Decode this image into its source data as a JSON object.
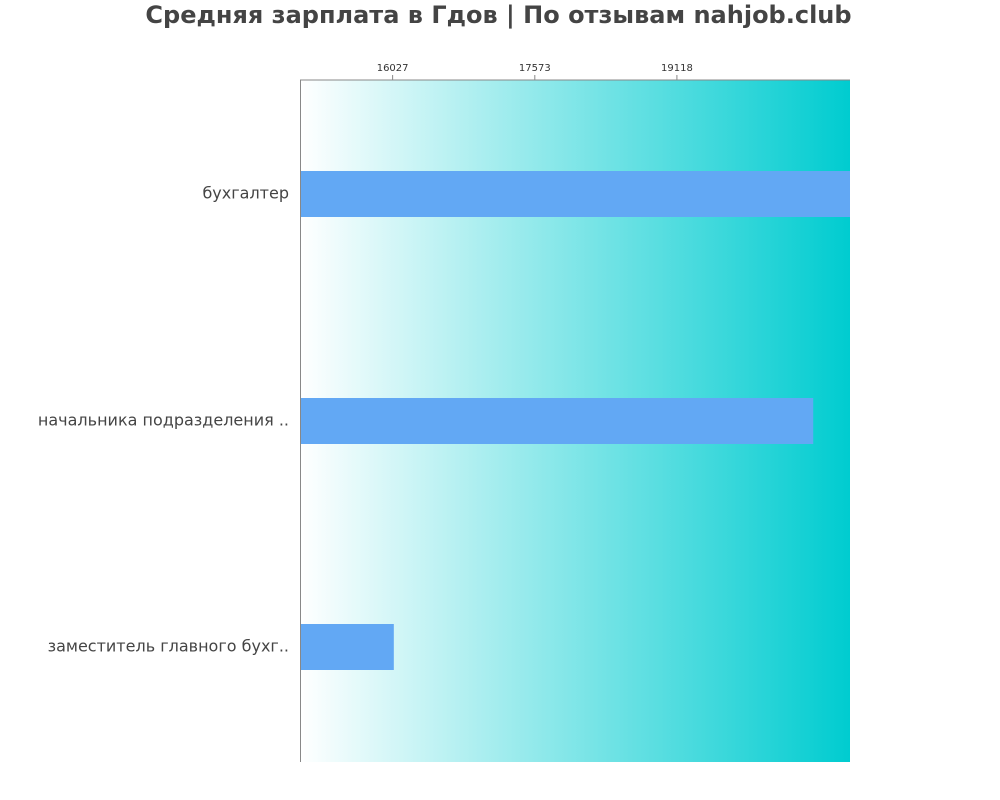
{
  "chart_data": {
    "type": "bar",
    "orientation": "horizontal",
    "title": "Средняя зарплата в Гдов | По отзывам nahjob.club",
    "xlabel": "",
    "ylabel": "",
    "categories": [
      "бухгалтер",
      "начальника подразделения ..",
      "заместитель главного бухг.."
    ],
    "values": [
      21000,
      20600,
      16040
    ],
    "x_ticks": [
      16027,
      17573,
      19118
    ],
    "x_axis_position": "top",
    "xlim": [
      15020,
      21000
    ],
    "grid": false,
    "legend": "none",
    "colors": {
      "bar": "#62a8f4",
      "background_start": "#ffffff",
      "background_end": "#00ccd0",
      "axis": "#888888",
      "title": "#444444"
    }
  }
}
